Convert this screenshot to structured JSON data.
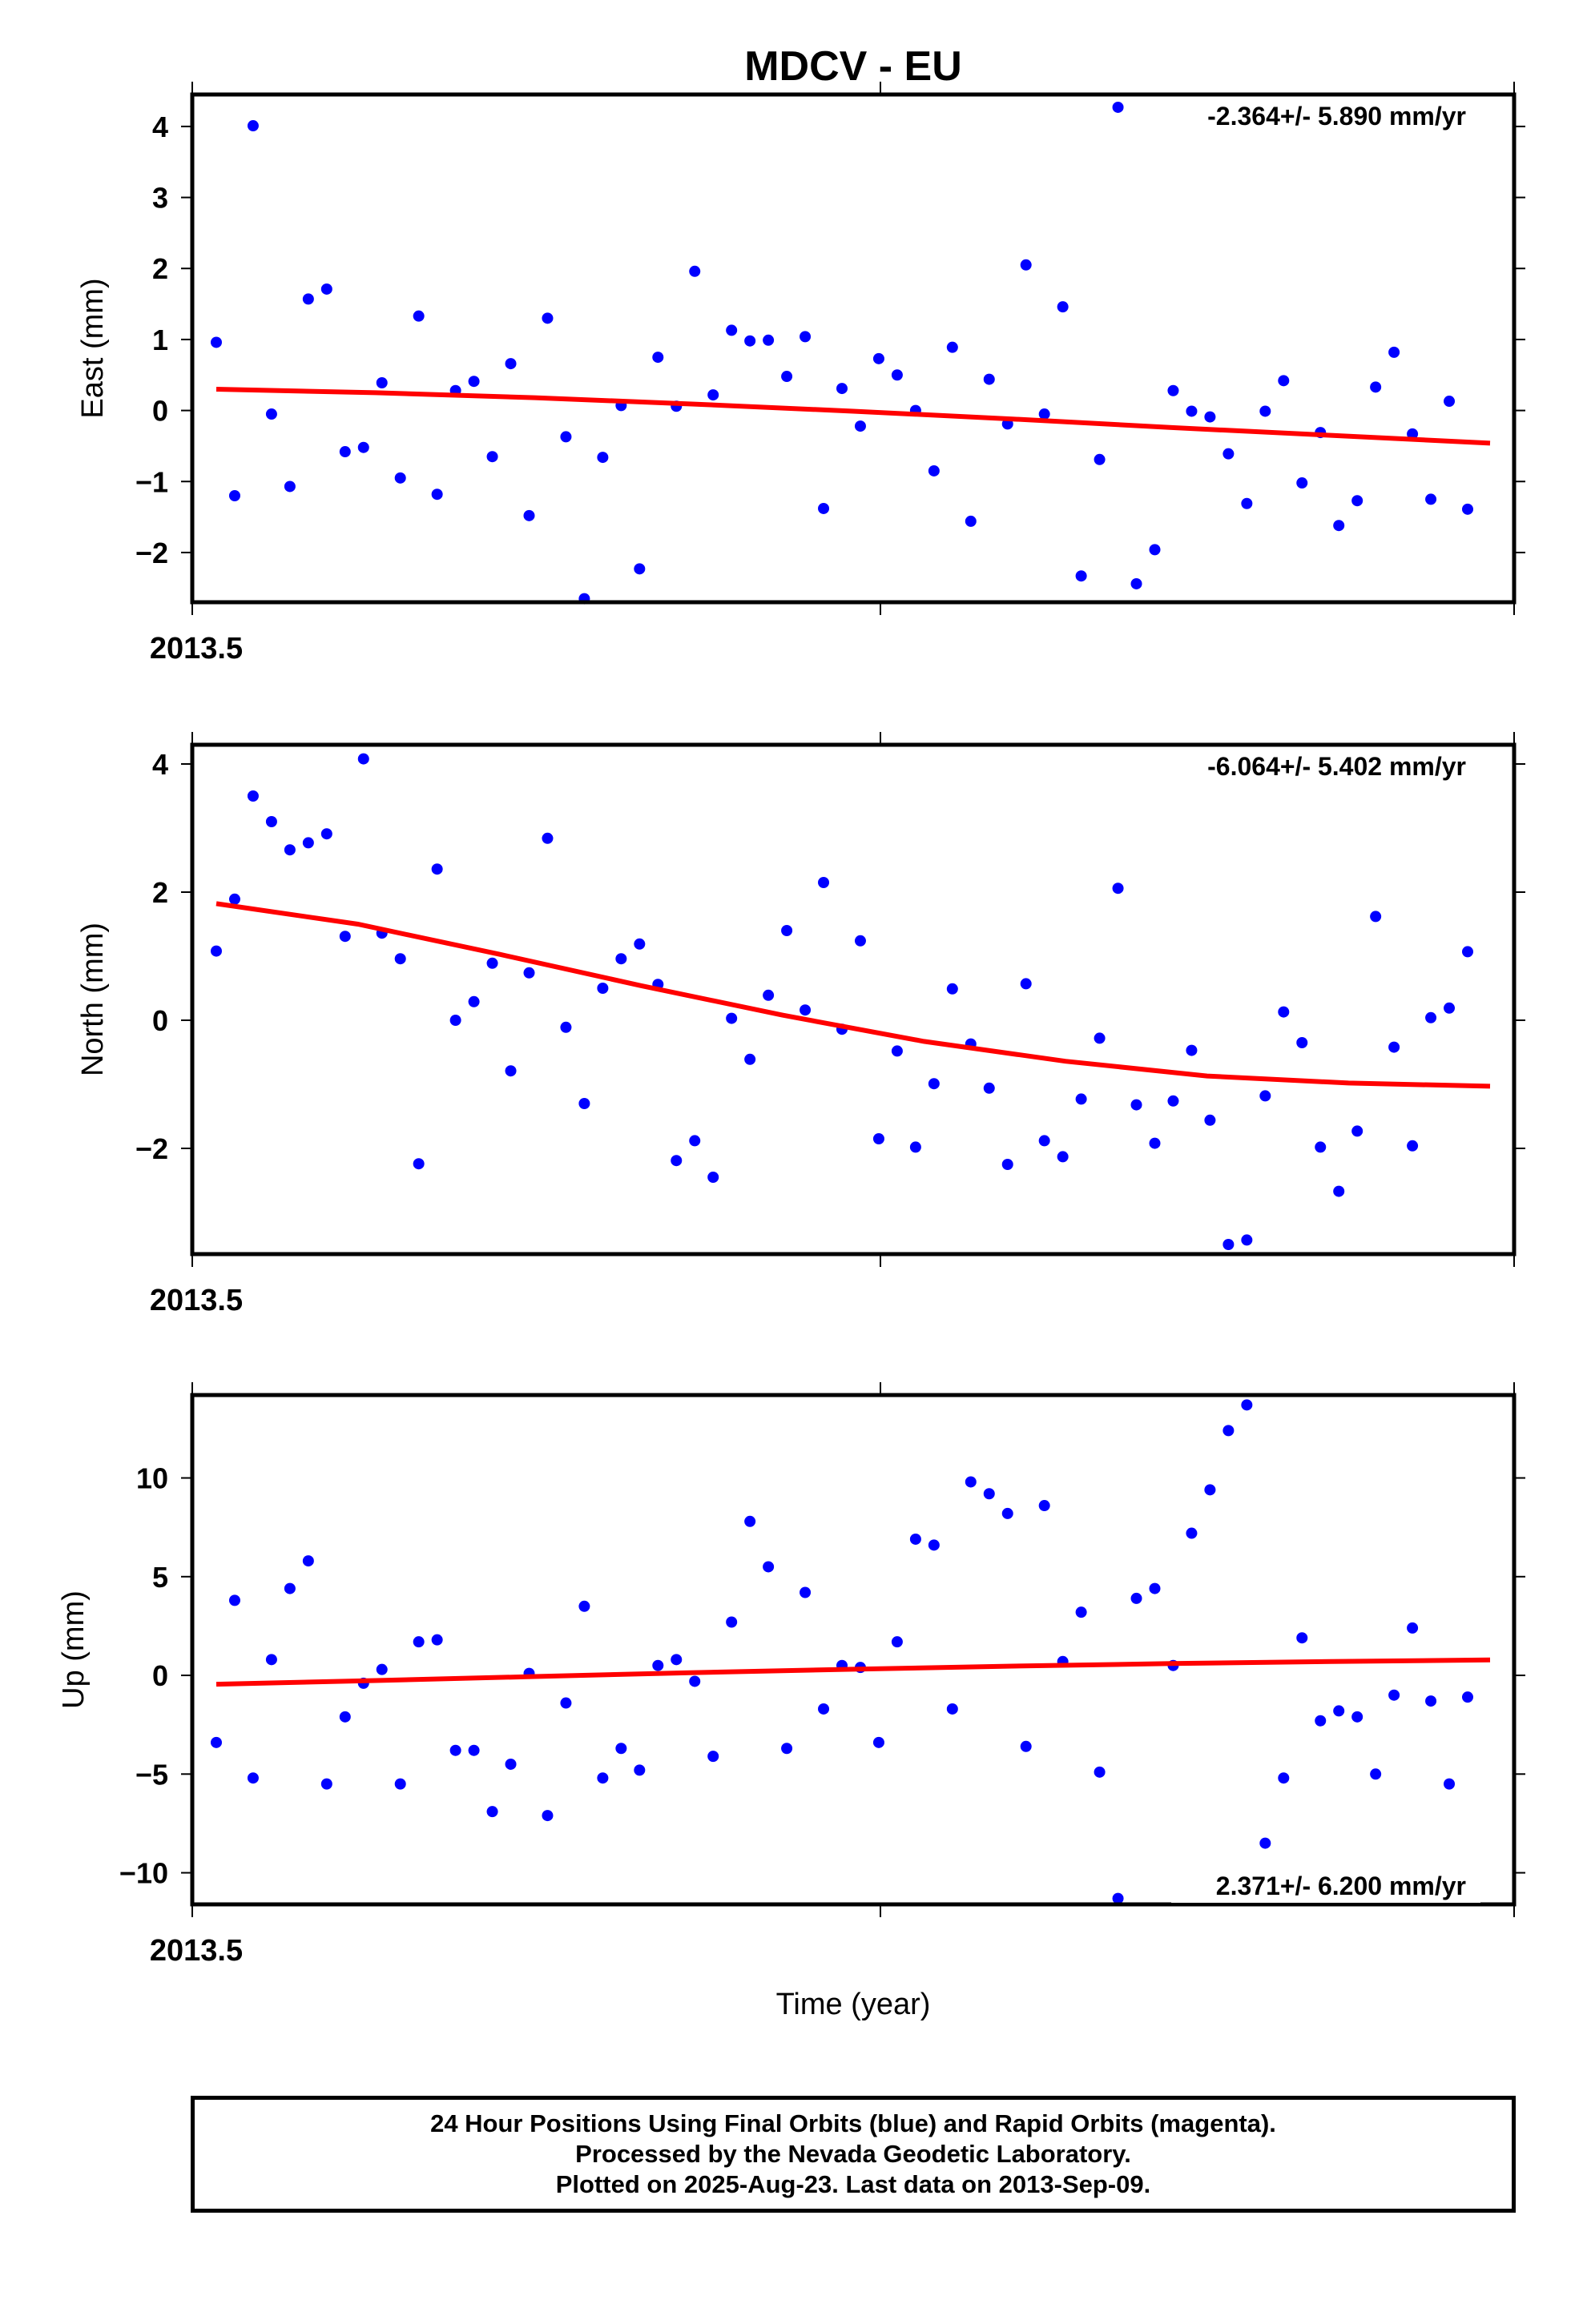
{
  "title": "MDCV - EU",
  "x_axis_label": "Time (year)",
  "footer_lines": [
    "24 Hour Positions Using Final Orbits (blue) and Rapid Orbits (magenta).",
    "Processed by the Nevada Geodetic Laboratory.",
    "Plotted on 2025-Aug-23. Last data on 2013-Sep-09."
  ],
  "colors": {
    "final_orbit_points": "#0000ff",
    "fit_line": "#ff0000"
  },
  "chart_data": [
    {
      "type": "scatter",
      "ylabel": "East (mm)",
      "rate_label": "-2.364+/- 5.890 mm/yr",
      "x_tick_labels": [
        "2013.5"
      ],
      "xlim": [
        2013.499,
        2013.694
      ],
      "ylim": [
        -2.7,
        4.45
      ],
      "y_ticks": [
        4,
        3,
        2,
        1,
        0,
        -1,
        -2
      ],
      "y_tick_labels": [
        "4",
        "3",
        "2",
        "1",
        "0",
        "−1",
        "−2"
      ],
      "grid": false,
      "points": [
        [
          0.96,
          -1.2,
          4.01,
          -0.05,
          -1.07,
          1.57,
          1.71,
          -0.58,
          -0.52,
          0.39,
          -0.95,
          1.33,
          -1.18,
          0.28,
          0.41,
          -0.65,
          0.66,
          -1.48,
          1.3,
          -0.37,
          -2.65,
          -0.66,
          0.07,
          -2.23,
          0.75,
          0.06,
          1.96,
          0.22,
          1.13,
          0.98,
          0.99,
          0.48,
          1.04,
          -1.38,
          0.31,
          -0.22,
          0.73,
          0.5,
          0.0,
          -0.85,
          0.89,
          -1.56,
          0.44,
          -0.19,
          2.05,
          -0.05,
          1.46,
          -2.33,
          -0.69,
          4.27,
          -2.44,
          -1.96,
          0.28,
          -0.01,
          -0.09,
          -0.61,
          -1.31,
          -0.01,
          0.42,
          -1.02,
          -0.31,
          -1.62,
          -1.27,
          0.33,
          0.82,
          -0.33,
          -1.25,
          0.13,
          -1.39
        ]
      ],
      "fit": [
        0.3,
        0.25,
        0.18,
        0.09,
        -0.01,
        -0.12,
        -0.24,
        -0.35,
        -0.46
      ]
    },
    {
      "type": "scatter",
      "ylabel": "North (mm)",
      "rate_label": "-6.064+/- 5.402 mm/yr",
      "x_tick_labels": [
        "2013.5"
      ],
      "xlim": [
        2013.499,
        2013.694
      ],
      "ylim": [
        -3.65,
        4.3
      ],
      "y_ticks": [
        4,
        2,
        0,
        -2
      ],
      "y_tick_labels": [
        "4",
        "2",
        "0",
        "−2"
      ],
      "grid": false,
      "points": [
        [
          1.08,
          1.89,
          3.5,
          3.1,
          2.66,
          2.77,
          2.91,
          1.31,
          4.08,
          1.36,
          0.96,
          -2.24,
          2.36,
          0.0,
          0.29,
          0.89,
          -0.79,
          0.74,
          2.84,
          -0.11,
          -1.3,
          0.5,
          0.96,
          1.19,
          0.56,
          -2.19,
          -1.88,
          -2.45,
          0.03,
          -0.61,
          0.39,
          1.4,
          0.16,
          2.15,
          -0.14,
          1.24,
          -1.85,
          -0.48,
          -1.98,
          -0.99,
          0.49,
          -0.37,
          -1.06,
          -2.25,
          0.57,
          -1.88,
          -2.13,
          -1.23,
          -0.28,
          2.06,
          -1.32,
          -1.92,
          -1.26,
          -0.47,
          -1.56,
          -3.5,
          -3.43,
          -1.18,
          0.13,
          -0.35,
          -1.98,
          -2.67,
          -1.73,
          1.62,
          -0.42,
          -1.96,
          0.04,
          0.19,
          1.07
        ]
      ],
      "fit": [
        1.82,
        1.5,
        1.03,
        0.54,
        0.08,
        -0.33,
        -0.64,
        -0.87,
        -0.98,
        -1.03
      ]
    },
    {
      "type": "scatter",
      "ylabel": "Up (mm)",
      "rate_label": "2.371+/- 6.200 mm/yr",
      "x_tick_labels": [
        "2013.5"
      ],
      "xlim": [
        2013.499,
        2013.694
      ],
      "ylim": [
        -11.6,
        14.2
      ],
      "y_ticks": [
        10,
        5,
        0,
        -5,
        -10
      ],
      "y_tick_labels": [
        "10",
        "5",
        "0",
        "−5",
        "−10"
      ],
      "grid": false,
      "points": [
        [
          -3.4,
          3.8,
          -5.2,
          0.8,
          4.4,
          5.8,
          -5.5,
          -2.1,
          -0.4,
          0.3,
          -5.5,
          1.7,
          1.8,
          -3.8,
          -3.8,
          -6.9,
          -4.5,
          0.1,
          -7.1,
          -1.4,
          3.5,
          -5.2,
          -3.7,
          -4.8,
          0.5,
          0.8,
          -0.3,
          -4.1,
          2.7,
          7.8,
          5.5,
          -3.7,
          4.2,
          -1.7,
          0.5,
          0.4,
          -3.4,
          1.7,
          6.9,
          6.6,
          -1.7,
          9.8,
          9.2,
          8.2,
          -3.6,
          8.6,
          0.7,
          3.2,
          -4.9,
          -11.3,
          3.9,
          4.4,
          0.5,
          7.2,
          9.4,
          12.4,
          13.7,
          -8.5,
          -5.2,
          1.9,
          -2.3,
          -1.8,
          -2.1,
          -5.0,
          -1.0,
          2.4,
          -1.3,
          -5.5,
          -1.1
        ]
      ],
      "fit": [
        -0.45,
        -0.26,
        -0.06,
        0.14,
        0.31,
        0.47,
        0.6,
        0.7,
        0.78
      ]
    }
  ]
}
